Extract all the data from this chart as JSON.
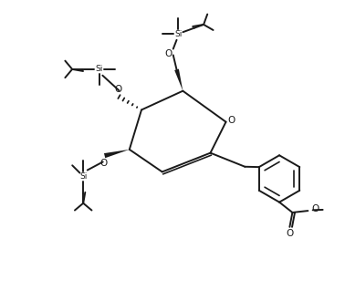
{
  "bg_color": "#ffffff",
  "line_color": "#1a1a1a",
  "line_width": 1.4,
  "fig_width": 3.78,
  "fig_height": 3.3,
  "dpi": 100,
  "xlim": [
    0,
    10
  ],
  "ylim": [
    0,
    8.74
  ]
}
